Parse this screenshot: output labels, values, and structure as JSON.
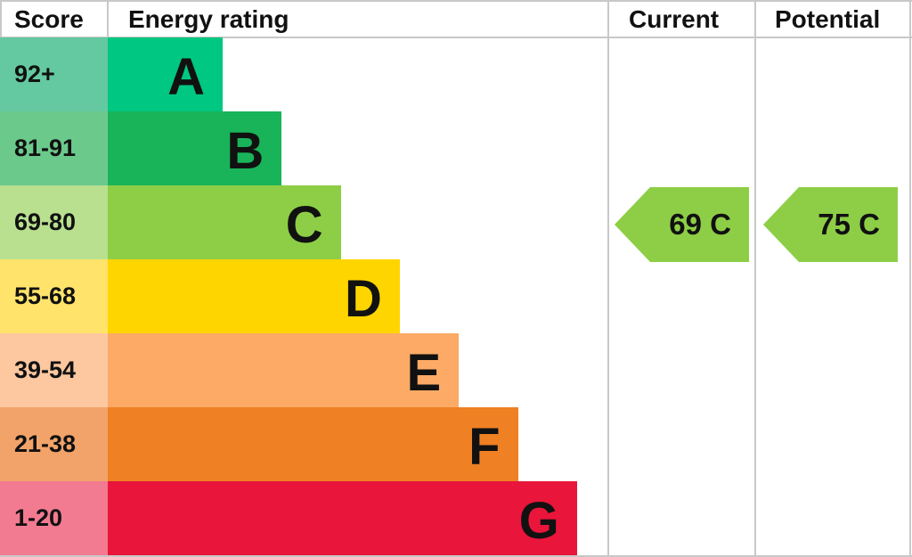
{
  "chart_data": {
    "type": "bar",
    "headers": {
      "score": "Score",
      "rating": "Energy rating",
      "current": "Current",
      "potential": "Potential"
    },
    "bands": [
      {
        "score": "92+",
        "letter": "A",
        "color": "#00c781",
        "score_color": "#64c9a0"
      },
      {
        "score": "81-91",
        "letter": "B",
        "color": "#19b459",
        "score_color": "#6cc98c"
      },
      {
        "score": "69-80",
        "letter": "C",
        "color": "#8dce46",
        "score_color": "#b8e08f"
      },
      {
        "score": "55-68",
        "letter": "D",
        "color": "#ffd500",
        "score_color": "#ffe36b"
      },
      {
        "score": "39-54",
        "letter": "E",
        "color": "#fcaa65",
        "score_color": "#fdc7a0"
      },
      {
        "score": "21-38",
        "letter": "F",
        "color": "#ef8023",
        "score_color": "#f2a36a"
      },
      {
        "score": "1-20",
        "letter": "G",
        "color": "#e9153b",
        "score_color": "#f27a91"
      }
    ],
    "current": {
      "value": 69,
      "band": "C",
      "label": "69 C",
      "color": "#8dce46"
    },
    "potential": {
      "value": 75,
      "band": "C",
      "label": "75 C",
      "color": "#8dce46"
    }
  }
}
